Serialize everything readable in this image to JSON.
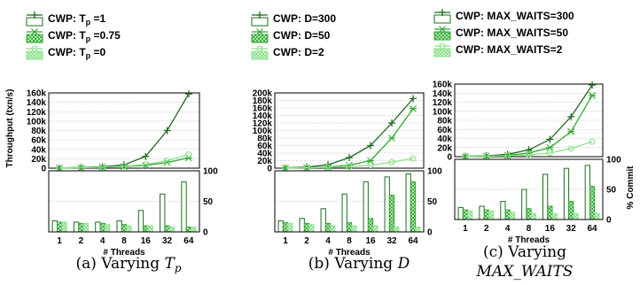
{
  "figure": {
    "left_axis_label": "Throughput (txn/s)",
    "right_axis_label": "% Commit",
    "x_axis_label": "# Threads"
  },
  "colors": {
    "dark": "#1e6b1e",
    "mid": "#2fa82f",
    "light": "#8fe08f"
  },
  "chart_data": [
    {
      "type": "line",
      "caption": "(a) Varying T_p",
      "x": [
        "1",
        "2",
        "4",
        "8",
        "16",
        "32",
        "64"
      ],
      "legend": [
        "CWP: T_p =1",
        "CWP: T_p =0.75",
        "CWP: T_p =0"
      ],
      "ylim": [
        0,
        160000
      ],
      "yticks": [
        "0",
        "20k",
        "40k",
        "60k",
        "80k",
        "100k",
        "120k",
        "140k",
        "160k"
      ],
      "series": [
        {
          "name": "CWP: T_p =1",
          "values": [
            500,
            1500,
            3000,
            7000,
            25000,
            80000,
            158000
          ]
        },
        {
          "name": "CWP: T_p =0.75",
          "values": [
            500,
            1000,
            2000,
            3500,
            6000,
            12000,
            22000
          ]
        },
        {
          "name": "CWP: T_p =0",
          "values": [
            500,
            1000,
            2000,
            4000,
            8000,
            16000,
            29000
          ]
        }
      ],
      "commit_ylim": [
        0,
        100
      ],
      "commit_yticks": [
        "0",
        "50",
        "100"
      ],
      "commit": [
        {
          "name": "CWP: T_p =1",
          "values": [
            18,
            16,
            16,
            18,
            35,
            62,
            82
          ]
        },
        {
          "name": "CWP: T_p =0.75",
          "values": [
            16,
            14,
            14,
            12,
            10,
            10,
            8
          ]
        },
        {
          "name": "CWP: T_p =0",
          "values": [
            16,
            14,
            12,
            10,
            10,
            8,
            8
          ]
        }
      ]
    },
    {
      "type": "line",
      "caption": "(b) Varying D",
      "x": [
        "1",
        "2",
        "4",
        "8",
        "16",
        "32",
        "64"
      ],
      "legend": [
        "CWP: D=300",
        "CWP: D=50",
        "CWP: D=2"
      ],
      "ylim": [
        0,
        200000
      ],
      "yticks": [
        "0",
        "20k",
        "40k",
        "60k",
        "80k",
        "100k",
        "120k",
        "140k",
        "160k",
        "180k",
        "200k"
      ],
      "series": [
        {
          "name": "CWP: D=300",
          "values": [
            1000,
            3000,
            9000,
            28000,
            60000,
            120000,
            185000
          ]
        },
        {
          "name": "CWP: D=50",
          "values": [
            500,
            1500,
            3000,
            8000,
            20000,
            80000,
            158000
          ]
        },
        {
          "name": "CWP: D=2",
          "values": [
            500,
            1000,
            2000,
            4000,
            8000,
            16000,
            26000
          ]
        }
      ],
      "commit_ylim": [
        0,
        100
      ],
      "commit_yticks": [
        "0",
        "50",
        "100"
      ],
      "commit": [
        {
          "name": "CWP: D=300",
          "values": [
            18,
            22,
            38,
            62,
            82,
            90,
            95
          ]
        },
        {
          "name": "CWP: D=50",
          "values": [
            15,
            14,
            14,
            15,
            22,
            60,
            82
          ]
        },
        {
          "name": "CWP: D=2",
          "values": [
            14,
            12,
            10,
            10,
            10,
            8,
            8
          ]
        }
      ]
    },
    {
      "type": "line",
      "caption": "(c) Varying MAX_WAITS",
      "x": [
        "1",
        "2",
        "4",
        "8",
        "16",
        "32",
        "64"
      ],
      "legend": [
        "CWP: MAX_WAITS=300",
        "CWP: MAX_WAITS=50",
        "CWP: MAX_WAITS=2"
      ],
      "ylim": [
        0,
        160000
      ],
      "yticks": [
        "0",
        "20k",
        "40k",
        "60k",
        "80k",
        "100k",
        "120k",
        "140k",
        "160k"
      ],
      "series": [
        {
          "name": "CWP: MAX_WAITS=300",
          "values": [
            1000,
            2000,
            5000,
            15000,
            38000,
            88000,
            158000
          ]
        },
        {
          "name": "CWP: MAX_WAITS=50",
          "values": [
            500,
            1500,
            3000,
            8000,
            20000,
            55000,
            135000
          ]
        },
        {
          "name": "CWP: MAX_WAITS=2",
          "values": [
            500,
            1000,
            2000,
            4000,
            8000,
            18000,
            33000
          ]
        }
      ],
      "commit_ylim": [
        0,
        100
      ],
      "commit_yticks": [
        "0",
        "50",
        "100"
      ],
      "commit": [
        {
          "name": "CWP: MAX_WAITS=300",
          "values": [
            20,
            22,
            30,
            50,
            75,
            85,
            90
          ]
        },
        {
          "name": "CWP: MAX_WAITS=50",
          "values": [
            16,
            16,
            16,
            18,
            22,
            30,
            55
          ]
        },
        {
          "name": "CWP: MAX_WAITS=2",
          "values": [
            14,
            14,
            12,
            10,
            10,
            10,
            10
          ]
        }
      ]
    }
  ]
}
